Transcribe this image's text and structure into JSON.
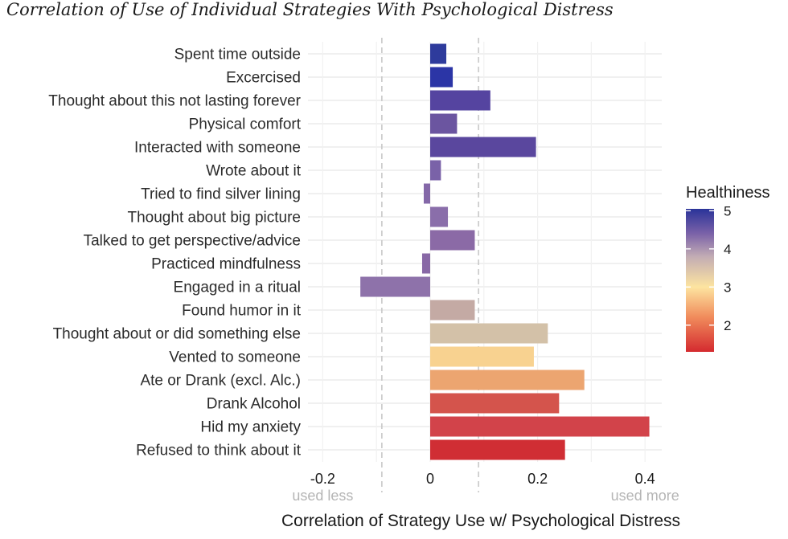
{
  "chart_data": {
    "type": "bar",
    "orientation": "horizontal",
    "title": "Correlation of Use of Individual Strategies With Psychological Distress",
    "xlabel": "Correlation of Strategy Use w/ Psychological Distress",
    "ylabel": "",
    "xlim": [
      -0.23,
      0.44
    ],
    "x_ticks": [
      -0.2,
      0,
      0.2,
      0.4
    ],
    "x_tick_labels": [
      "-0.2",
      "0",
      "0.2",
      "0.4"
    ],
    "reference_lines": [
      -0.09,
      0.09
    ],
    "annotations": [
      {
        "text": "used less",
        "x": -0.2
      },
      {
        "text": "used more",
        "x": 0.4
      }
    ],
    "grid": true,
    "categories": [
      "Spent time outside",
      "Excercised",
      "Thought about this not lasting forever",
      "Physical comfort",
      "Interacted with someone",
      "Wrote about it",
      "Tried to find silver lining",
      "Thought about big picture",
      "Talked to get perspective/advice",
      "Practiced mindfulness",
      "Engaged in a ritual",
      "Found humor in it",
      "Thought about or did something else",
      "Vented to someone",
      "Ate or Drank (excl. Alc.)",
      "Drank Alcohol",
      "Hid my anxiety",
      "Refused to think about it"
    ],
    "values": [
      0.03,
      0.042,
      0.112,
      0.05,
      0.197,
      0.02,
      -0.012,
      0.033,
      0.083,
      -0.015,
      -0.13,
      0.083,
      0.219,
      0.193,
      0.287,
      0.24,
      0.408,
      0.251
    ],
    "healthiness": [
      4.95,
      4.9,
      4.55,
      4.4,
      4.55,
      4.35,
      4.3,
      4.3,
      4.2,
      4.25,
      4.15,
      3.85,
      3.5,
      3.1,
      2.55,
      2.1,
      1.9,
      1.7
    ],
    "colors": [
      "#2e3b9c",
      "#2b35a6",
      "#5544a0",
      "#6b55a0",
      "#5a479e",
      "#7a62a8",
      "#8468a8",
      "#8a6eaa",
      "#8b6aa6",
      "#8868a6",
      "#8e72aa",
      "#c4aaa4",
      "#d3c1a8",
      "#f8d290",
      "#eca570",
      "#d4544c",
      "#d2434a",
      "#d02e34"
    ],
    "legend": {
      "title": "Healthiness",
      "type": "colorbar",
      "ticks": [
        2,
        3,
        4,
        5
      ],
      "tick_labels": [
        "2",
        "3",
        "4",
        "5"
      ],
      "range": [
        1.3,
        5.05
      ],
      "gradient_stops": [
        {
          "value": 1.3,
          "color": "#d42a2f"
        },
        {
          "value": 2.2,
          "color": "#f08a5b"
        },
        {
          "value": 3.0,
          "color": "#fde4a0"
        },
        {
          "value": 3.8,
          "color": "#c2acb4"
        },
        {
          "value": 4.4,
          "color": "#7b62a8"
        },
        {
          "value": 5.05,
          "color": "#2a3399"
        }
      ],
      "placement": "right"
    }
  }
}
